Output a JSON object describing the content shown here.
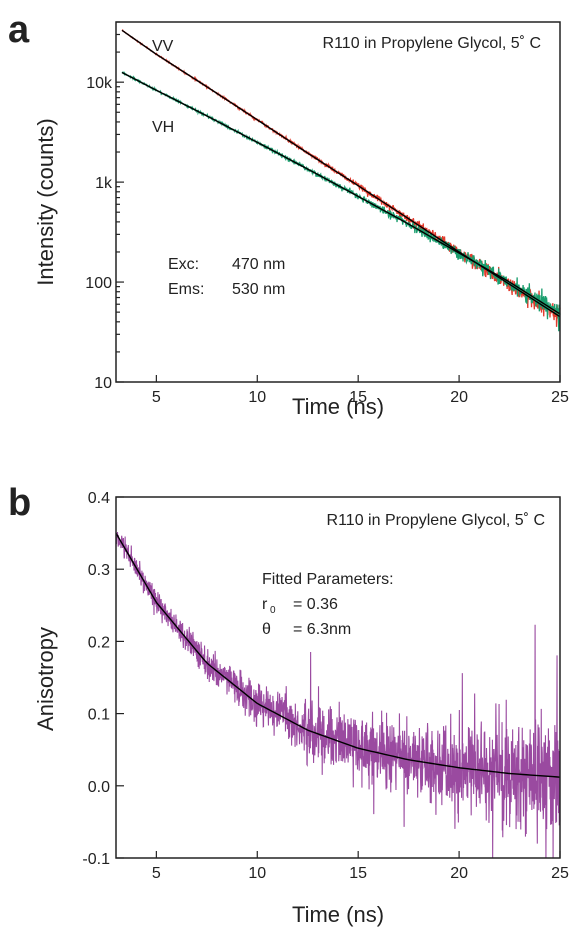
{
  "chart_data": [
    {
      "panel": "a",
      "type": "line",
      "title": "R110 in Propylene Glycol, 5˚ C",
      "xlabel": "Time (ns)",
      "ylabel": "Intensity (counts)",
      "xlim": [
        3,
        25
      ],
      "ylim": [
        10,
        40000
      ],
      "yscale": "log",
      "x_ticks": [
        5,
        10,
        15,
        20,
        25
      ],
      "y_ticks": [
        {
          "value": 10,
          "label": "10"
        },
        {
          "value": 100,
          "label": "100"
        },
        {
          "value": 1000,
          "label": "1k"
        },
        {
          "value": 10000,
          "label": "10k"
        }
      ],
      "annotations": {
        "exc_label": "Exc:",
        "exc_value": "470 nm",
        "ems_label": "Ems:",
        "ems_value": "530 nm"
      },
      "series": [
        {
          "name": "VV",
          "color": "#e23a2c",
          "fit_color": "#000000",
          "x": [
            3.3,
            5,
            7.5,
            10,
            12.5,
            15,
            17.5,
            20,
            22.5,
            25
          ],
          "y": [
            33000,
            19000,
            9000,
            4200,
            1950,
            920,
            430,
            200,
            95,
            45
          ]
        },
        {
          "name": "VH",
          "color": "#1a9e6e",
          "fit_color": "#000000",
          "x": [
            3.3,
            5,
            7.5,
            10,
            12.5,
            15,
            17.5,
            20,
            22.5,
            25
          ],
          "y": [
            12500,
            8300,
            4600,
            2500,
            1350,
            720,
            380,
            195,
            100,
            48
          ]
        }
      ]
    },
    {
      "panel": "b",
      "type": "line",
      "title": "R110 in Propylene Glycol, 5˚ C",
      "xlabel": "Time (ns)",
      "ylabel": "Anisotropy",
      "xlim": [
        3,
        25
      ],
      "ylim": [
        -0.1,
        0.4
      ],
      "x_ticks": [
        5,
        10,
        15,
        20,
        25
      ],
      "y_ticks": [
        {
          "value": -0.1,
          "label": "-0.1"
        },
        {
          "value": 0.0,
          "label": "0.0"
        },
        {
          "value": 0.1,
          "label": "0.1"
        },
        {
          "value": 0.2,
          "label": "0.2"
        },
        {
          "value": 0.3,
          "label": "0.3"
        },
        {
          "value": 0.4,
          "label": "0.4"
        }
      ],
      "annotations": {
        "fitted_title": "Fitted Parameters:",
        "r0_label": "r",
        "r0_sub": "0",
        "r0_value": "= 0.36",
        "theta_label": "θ",
        "theta_value": "= 6.3nm"
      },
      "series": [
        {
          "color": "#9a4aa0",
          "fit_color": "#000000",
          "x": [
            3,
            5,
            7.5,
            10,
            12.5,
            15,
            17.5,
            20,
            22.5,
            25
          ],
          "y": [
            0.35,
            0.254,
            0.17,
            0.114,
            0.077,
            0.052,
            0.036,
            0.025,
            0.017,
            0.012
          ]
        }
      ]
    }
  ]
}
